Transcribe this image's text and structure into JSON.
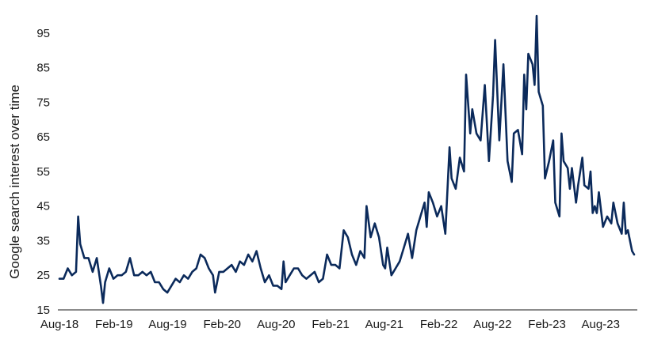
{
  "chart_data": {
    "type": "line",
    "ylabel": "Google search interest over time",
    "xlabel": "",
    "title": "",
    "ylim": [
      15,
      100
    ],
    "y_ticks": [
      15,
      25,
      35,
      45,
      55,
      65,
      75,
      85,
      95
    ],
    "x_ticks": [
      {
        "label": "Aug-18",
        "date": "2018-08"
      },
      {
        "label": "Feb-19",
        "date": "2019-02"
      },
      {
        "label": "Aug-19",
        "date": "2019-08"
      },
      {
        "label": "Feb-20",
        "date": "2020-02"
      },
      {
        "label": "Aug-20",
        "date": "2020-08"
      },
      {
        "label": "Feb-21",
        "date": "2021-02"
      },
      {
        "label": "Aug-21",
        "date": "2021-08"
      },
      {
        "label": "Feb-22",
        "date": "2022-02"
      },
      {
        "label": "Aug-22",
        "date": "2022-08"
      },
      {
        "label": "Feb-23",
        "date": "2023-02"
      },
      {
        "label": "Aug-23",
        "date": "2023-08"
      }
    ],
    "line_color": "#0b2a5b",
    "grid": false,
    "series": [
      {
        "name": "",
        "points": [
          [
            "2018-08-01",
            24
          ],
          [
            "2018-08-15",
            24
          ],
          [
            "2018-08-29",
            27
          ],
          [
            "2018-09-12",
            25
          ],
          [
            "2018-09-26",
            26
          ],
          [
            "2018-10-03",
            42
          ],
          [
            "2018-10-10",
            34
          ],
          [
            "2018-10-24",
            30
          ],
          [
            "2018-11-07",
            30
          ],
          [
            "2018-11-21",
            26
          ],
          [
            "2018-12-05",
            30
          ],
          [
            "2018-12-19",
            22
          ],
          [
            "2018-12-26",
            17
          ],
          [
            "2019-01-02",
            23
          ],
          [
            "2019-01-16",
            27
          ],
          [
            "2019-01-30",
            24
          ],
          [
            "2019-02-13",
            25
          ],
          [
            "2019-02-27",
            25
          ],
          [
            "2019-03-13",
            26
          ],
          [
            "2019-03-27",
            30
          ],
          [
            "2019-04-10",
            25
          ],
          [
            "2019-04-24",
            25
          ],
          [
            "2019-05-08",
            26
          ],
          [
            "2019-05-22",
            25
          ],
          [
            "2019-06-05",
            26
          ],
          [
            "2019-06-19",
            23
          ],
          [
            "2019-07-03",
            23
          ],
          [
            "2019-07-17",
            21
          ],
          [
            "2019-07-31",
            20
          ],
          [
            "2019-08-14",
            22
          ],
          [
            "2019-08-28",
            24
          ],
          [
            "2019-09-11",
            23
          ],
          [
            "2019-09-25",
            25
          ],
          [
            "2019-10-09",
            24
          ],
          [
            "2019-10-23",
            26
          ],
          [
            "2019-11-06",
            27
          ],
          [
            "2019-11-20",
            31
          ],
          [
            "2019-12-04",
            30
          ],
          [
            "2019-12-18",
            27
          ],
          [
            "2020-01-01",
            25
          ],
          [
            "2020-01-08",
            20
          ],
          [
            "2020-01-22",
            26
          ],
          [
            "2020-02-05",
            26
          ],
          [
            "2020-02-19",
            27
          ],
          [
            "2020-03-04",
            28
          ],
          [
            "2020-03-18",
            26
          ],
          [
            "2020-04-01",
            29
          ],
          [
            "2020-04-15",
            28
          ],
          [
            "2020-04-29",
            31
          ],
          [
            "2020-05-13",
            29
          ],
          [
            "2020-05-27",
            32
          ],
          [
            "2020-06-10",
            27
          ],
          [
            "2020-06-24",
            23
          ],
          [
            "2020-07-08",
            25
          ],
          [
            "2020-07-22",
            22
          ],
          [
            "2020-08-05",
            22
          ],
          [
            "2020-08-19",
            21
          ],
          [
            "2020-08-26",
            29
          ],
          [
            "2020-09-02",
            23
          ],
          [
            "2020-09-16",
            25
          ],
          [
            "2020-09-30",
            27
          ],
          [
            "2020-10-14",
            27
          ],
          [
            "2020-10-28",
            25
          ],
          [
            "2020-11-11",
            24
          ],
          [
            "2020-11-25",
            25
          ],
          [
            "2020-12-09",
            26
          ],
          [
            "2020-12-23",
            23
          ],
          [
            "2021-01-06",
            24
          ],
          [
            "2021-01-20",
            31
          ],
          [
            "2021-02-03",
            28
          ],
          [
            "2021-02-17",
            28
          ],
          [
            "2021-03-03",
            27
          ],
          [
            "2021-03-17",
            38
          ],
          [
            "2021-03-31",
            36
          ],
          [
            "2021-04-14",
            31
          ],
          [
            "2021-04-28",
            28
          ],
          [
            "2021-05-12",
            32
          ],
          [
            "2021-05-26",
            30
          ],
          [
            "2021-06-02",
            45
          ],
          [
            "2021-06-16",
            36
          ],
          [
            "2021-06-30",
            40
          ],
          [
            "2021-07-14",
            36
          ],
          [
            "2021-07-28",
            28
          ],
          [
            "2021-08-04",
            27
          ],
          [
            "2021-08-11",
            33
          ],
          [
            "2021-08-25",
            25
          ],
          [
            "2021-09-08",
            27
          ],
          [
            "2021-09-22",
            29
          ],
          [
            "2021-10-06",
            33
          ],
          [
            "2021-10-20",
            37
          ],
          [
            "2021-11-03",
            30
          ],
          [
            "2021-11-17",
            38
          ],
          [
            "2021-12-01",
            42
          ],
          [
            "2021-12-15",
            46
          ],
          [
            "2021-12-22",
            39
          ],
          [
            "2021-12-29",
            49
          ],
          [
            "2022-01-12",
            46
          ],
          [
            "2022-01-26",
            42
          ],
          [
            "2022-02-09",
            45
          ],
          [
            "2022-02-23",
            37
          ],
          [
            "2022-03-09",
            62
          ],
          [
            "2022-03-16",
            53
          ],
          [
            "2022-03-30",
            50
          ],
          [
            "2022-04-13",
            59
          ],
          [
            "2022-04-27",
            55
          ],
          [
            "2022-05-04",
            83
          ],
          [
            "2022-05-18",
            66
          ],
          [
            "2022-05-25",
            73
          ],
          [
            "2022-06-08",
            66
          ],
          [
            "2022-06-22",
            64
          ],
          [
            "2022-07-06",
            80
          ],
          [
            "2022-07-20",
            58
          ],
          [
            "2022-08-03",
            77
          ],
          [
            "2022-08-10",
            93
          ],
          [
            "2022-08-24",
            64
          ],
          [
            "2022-09-07",
            86
          ],
          [
            "2022-09-21",
            58
          ],
          [
            "2022-10-05",
            52
          ],
          [
            "2022-10-12",
            66
          ],
          [
            "2022-10-26",
            67
          ],
          [
            "2022-11-09",
            60
          ],
          [
            "2022-11-16",
            83
          ],
          [
            "2022-11-23",
            73
          ],
          [
            "2022-11-30",
            89
          ],
          [
            "2022-12-14",
            86
          ],
          [
            "2022-12-21",
            80
          ],
          [
            "2022-12-28",
            100
          ],
          [
            "2023-01-04",
            78
          ],
          [
            "2023-01-18",
            74
          ],
          [
            "2023-01-25",
            53
          ],
          [
            "2023-02-08",
            58
          ],
          [
            "2023-02-22",
            64
          ],
          [
            "2023-03-01",
            46
          ],
          [
            "2023-03-15",
            42
          ],
          [
            "2023-03-22",
            66
          ],
          [
            "2023-03-29",
            58
          ],
          [
            "2023-04-12",
            56
          ],
          [
            "2023-04-19",
            50
          ],
          [
            "2023-04-26",
            56
          ],
          [
            "2023-05-10",
            46
          ],
          [
            "2023-05-17",
            51
          ],
          [
            "2023-05-31",
            59
          ],
          [
            "2023-06-07",
            51
          ],
          [
            "2023-06-21",
            50
          ],
          [
            "2023-06-28",
            55
          ],
          [
            "2023-07-05",
            43
          ],
          [
            "2023-07-12",
            45
          ],
          [
            "2023-07-19",
            43
          ],
          [
            "2023-07-26",
            49
          ],
          [
            "2023-08-09",
            39
          ],
          [
            "2023-08-23",
            42
          ],
          [
            "2023-09-06",
            40
          ],
          [
            "2023-09-13",
            46
          ],
          [
            "2023-09-27",
            40
          ],
          [
            "2023-10-11",
            37
          ],
          [
            "2023-10-18",
            46
          ],
          [
            "2023-10-25",
            37
          ],
          [
            "2023-11-01",
            38
          ],
          [
            "2023-11-15",
            32
          ],
          [
            "2023-11-22",
            31
          ]
        ]
      }
    ]
  }
}
